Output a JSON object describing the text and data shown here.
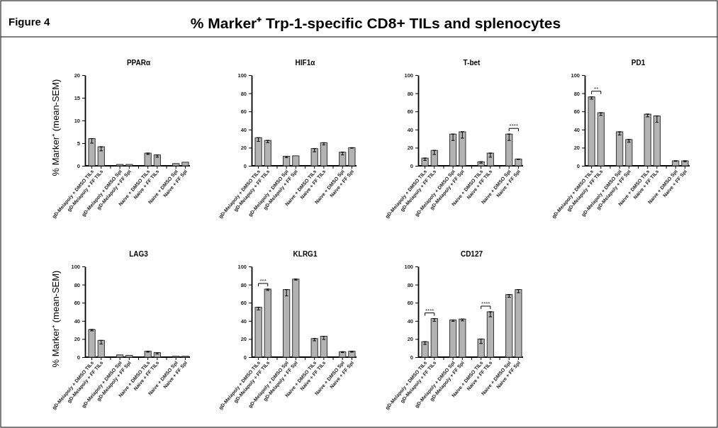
{
  "chart_data": [
    {
      "type": "bar",
      "title": "PPARα",
      "ylabel": "% Marker⁺ (mean-SEM)",
      "annotations": [
        "Figure 4",
        "% Marker⁺ Trp-1-specific CD8+ TILs and splenocytes"
      ],
      "categories": [
        "gD-Melapoly + DMSO TILs",
        "gD-Melapoly + FF TILs",
        "gD-Melapoly + DMSO Spl",
        "gD-Melapoly + FF Spl",
        "Naive + DMSO TILs",
        "Naive + FF TILs",
        "Naive + DMSO Spl",
        "Naive + FF Spl"
      ],
      "values": [
        6.0,
        4.2,
        0.3,
        0.3,
        2.8,
        2.4,
        0.5,
        0.8
      ],
      "errors": [
        [
          5.0,
          6.0
        ],
        [
          3.3,
          4.2
        ],
        null,
        null,
        [
          2.5,
          2.8
        ],
        [
          1.9,
          2.4
        ],
        null,
        null
      ],
      "color": "#b3b3b3",
      "ylim": [
        0,
        20
      ],
      "yticks": [
        0,
        5,
        10,
        15,
        20
      ]
    },
    {
      "type": "bar",
      "title": "HIF1α",
      "categories": [
        "gD-Melapoly + DMSO TILs",
        "gD-Melapoly + FF TILs",
        "gD-Melapoly + DMSO Spl",
        "gD-Melapoly + FF Spl",
        "Naive + DMSO TILs",
        "Naive + FF TILs",
        "Naive + DMSO Spl",
        "Naive + FF Spl"
      ],
      "values": [
        31,
        28,
        10.5,
        11,
        19,
        25.5,
        15,
        20
      ],
      "errors": [
        [
          27,
          31
        ],
        [
          25.5,
          28
        ],
        [
          9,
          10.5
        ],
        null,
        [
          15.5,
          19
        ],
        [
          23,
          25.5
        ],
        [
          12,
          15
        ],
        [
          19.5,
          20
        ]
      ],
      "color": "#b3b3b3",
      "ylim": [
        0,
        100
      ],
      "yticks": [
        0,
        20,
        40,
        60,
        80,
        100
      ]
    },
    {
      "type": "bar",
      "title": "T-bet",
      "annotations": [
        "****"
      ],
      "categories": [
        "gD-Melapoly + DMSO TILs",
        "gD-Melapoly + FF TILs",
        "gD-Melapoly + DMSO Spl",
        "gD-Melapoly + FF Spl",
        "Naive + DMSO TILs",
        "Naive + FF TILs",
        "Naive + DMSO Spl",
        "Naive + FF Spl"
      ],
      "values": [
        8.5,
        17,
        35,
        37.5,
        4.5,
        14,
        35,
        7.5
      ],
      "errors": [
        [
          6,
          8.5
        ],
        [
          12.5,
          17
        ],
        [
          28,
          35
        ],
        [
          30.5,
          37.5
        ],
        [
          3,
          4.5
        ],
        [
          9.5,
          14
        ],
        [
          28,
          35
        ],
        [
          7,
          7.5
        ]
      ],
      "color": "#b3b3b3",
      "ylim": [
        0,
        100
      ],
      "yticks": [
        0,
        20,
        40,
        60,
        80,
        100
      ]
    },
    {
      "type": "bar",
      "title": "PD1",
      "annotations": [
        "**"
      ],
      "categories": [
        "gD-Melapoly + DMSO TILs",
        "gD-Melapoly + FF TILs",
        "gD-Melapoly + DMSO Spl",
        "gD-Melapoly + FF Spl",
        "Naive + DMSO TILs",
        "Naive + FF TILs",
        "Naive + DMSO Spl",
        "Naive + FF Spl"
      ],
      "values": [
        76,
        58.5,
        37.5,
        29,
        57,
        55,
        5.5,
        5.5
      ],
      "errors": [
        [
          73.5,
          76
        ],
        [
          55.5,
          58.5
        ],
        [
          34,
          37.5
        ],
        [
          26,
          29
        ],
        [
          54,
          57
        ],
        [
          48,
          55
        ],
        [
          5,
          5.5
        ],
        [
          4.5,
          5.5
        ]
      ],
      "color": "#b3b3b3",
      "ylim": [
        0,
        100
      ],
      "yticks": [
        0,
        20,
        40,
        60,
        80,
        100
      ]
    },
    {
      "type": "bar",
      "title": "LAG3",
      "ylabel": "% Marker⁺ (mean-SEM)",
      "categories": [
        "gD-Melapoly + DMSO TILs",
        "gD-Melapoly + FF TILs",
        "gD-Melapoly + DMSO Spl",
        "gD-Melapoly + FF Spl",
        "Naive + DMSO TILs",
        "Naive + FF TILs",
        "Naive + DMSO Spl",
        "Naive + FF Spl"
      ],
      "values": [
        30.5,
        18.5,
        2.5,
        2,
        6.5,
        5,
        1,
        1
      ],
      "errors": [
        [
          29,
          30.5
        ],
        [
          14.5,
          18.5
        ],
        null,
        null,
        [
          5.5,
          6.5
        ],
        [
          3.5,
          5
        ],
        null,
        null
      ],
      "color": "#b3b3b3",
      "ylim": [
        0,
        100
      ],
      "yticks": [
        0,
        20,
        40,
        60,
        80,
        100
      ]
    },
    {
      "type": "bar",
      "title": "KLRG1",
      "annotations": [
        "***"
      ],
      "categories": [
        "gD-Melapoly + DMSO TILs",
        "gD-Melapoly + FF TILs",
        "gD-Melapoly + DMSO Spl",
        "gD-Melapoly + FF Spl",
        "Naive + DMSO TILs",
        "Naive + FF TILs",
        "Naive + DMSO Spl",
        "Naive + FF Spl"
      ],
      "values": [
        55,
        75,
        74.5,
        86,
        20.5,
        23,
        6,
        6.5
      ],
      "errors": [
        [
          52,
          55
        ],
        [
          73.5,
          75
        ],
        [
          67.5,
          74.5
        ],
        [
          85,
          86
        ],
        [
          18,
          20.5
        ],
        [
          19.5,
          23
        ],
        [
          5,
          6
        ],
        [
          5.5,
          6.5
        ]
      ],
      "color": "#b3b3b3",
      "ylim": [
        0,
        100
      ],
      "yticks": [
        0,
        20,
        40,
        60,
        80,
        100
      ]
    },
    {
      "type": "bar",
      "title": "CD127",
      "annotations": [
        "****",
        "****"
      ],
      "categories": [
        "gD-Melapoly + DMSO TILs",
        "gD-Melapoly + FF TILs",
        "gD-Melapoly + DMSO Spl",
        "gD-Melapoly + FF Spl",
        "Naive + DMSO TILs",
        "Naive + FF TILs",
        "Naive + DMSO Spl",
        "Naive + FF Spl"
      ],
      "values": [
        17,
        42.5,
        41,
        42,
        20,
        50,
        69,
        74.5
      ],
      "errors": [
        [
          14,
          17
        ],
        [
          39.5,
          42.5
        ],
        [
          39.5,
          41
        ],
        [
          40,
          42
        ],
        [
          15,
          20
        ],
        [
          44.5,
          50
        ],
        [
          66,
          69
        ],
        [
          71,
          74.5
        ]
      ],
      "color": "#b3b3b3",
      "ylim": [
        0,
        100
      ],
      "yticks": [
        0,
        20,
        40,
        60,
        80,
        100
      ]
    }
  ]
}
